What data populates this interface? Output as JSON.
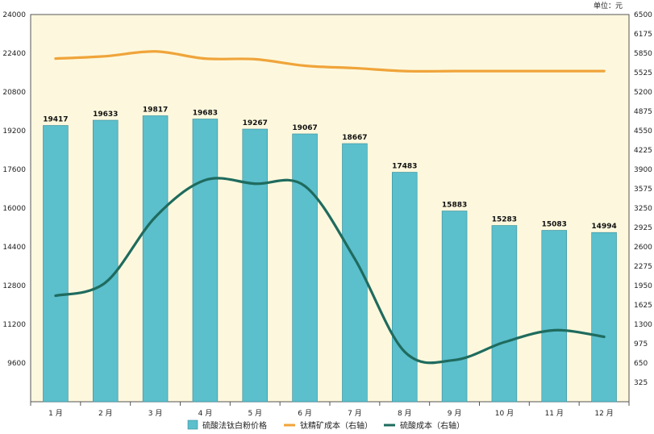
{
  "chart_data": {
    "type": "bar+line",
    "unit_label": "单位：元",
    "categories": [
      "1 月",
      "2 月",
      "3 月",
      "4 月",
      "5 月",
      "6 月",
      "7 月",
      "8 月",
      "9 月",
      "10 月",
      "11 月",
      "12 月"
    ],
    "left_axis": {
      "ylim": [
        8000,
        24000
      ],
      "ticks": [
        "9600",
        "11200",
        "12800",
        "14400",
        "16000",
        "17600",
        "19200",
        "20800",
        "22400",
        "24000"
      ],
      "tick_values": [
        9600,
        11200,
        12800,
        14400,
        16000,
        17600,
        19200,
        20800,
        22400,
        24000
      ]
    },
    "right_axis": {
      "ylim": [
        0,
        6500
      ],
      "ticks": [
        "325",
        "650",
        "975",
        "1300",
        "1625",
        "1950",
        "2275",
        "2600",
        "2925",
        "3250",
        "3575",
        "3900",
        "4225",
        "4550",
        "4875",
        "5200",
        "5525",
        "5850",
        "6175",
        "6500"
      ],
      "tick_values": [
        325,
        650,
        975,
        1300,
        1625,
        1950,
        2275,
        2600,
        2925,
        3250,
        3575,
        3900,
        4225,
        4550,
        4875,
        5200,
        5525,
        5850,
        6175,
        6500
      ]
    },
    "series": [
      {
        "name": "硫酸法钛白粉价格",
        "type": "bar",
        "axis": "left",
        "color": "#5bbfcc",
        "values": [
          19417,
          19633,
          19817,
          19683,
          19267,
          19067,
          18667,
          17483,
          15883,
          15283,
          15083,
          14994
        ],
        "labels": [
          "19417",
          "19633",
          "19817",
          "19683",
          "19267",
          "19067",
          "18667",
          "17483",
          "15883",
          "15283",
          "15083",
          "14994"
        ]
      },
      {
        "name": "钛精矿成本（右轴）",
        "type": "line",
        "axis": "right",
        "color": "#f0a43a",
        "values": [
          5760,
          5800,
          5880,
          5760,
          5750,
          5640,
          5600,
          5550,
          5550,
          5550,
          5550,
          5550
        ]
      },
      {
        "name": "硫酸成本（右轴）",
        "type": "line",
        "axis": "right",
        "color": "#1f6b5e",
        "values": [
          1780,
          2000,
          3100,
          3720,
          3660,
          3620,
          2400,
          840,
          700,
          1000,
          1200,
          1090
        ]
      }
    ]
  }
}
